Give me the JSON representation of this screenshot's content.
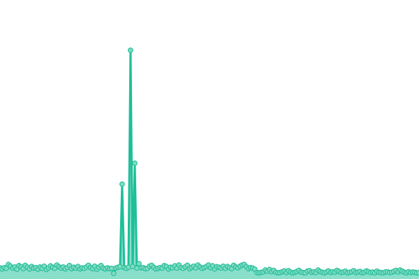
{
  "chart_data": {
    "type": "area",
    "title": "",
    "xlabel": "",
    "ylabel": "",
    "ylim": [
      0,
      100
    ],
    "grid": false,
    "legend": "none",
    "colors": {
      "line": "#1fbf98",
      "area": "#8adfcb",
      "marker_fill": "#7fdcc4",
      "marker_stroke": "#2cbf9b"
    },
    "values": [
      4.0,
      3.6,
      4.1,
      3.8,
      5.2,
      4.6,
      3.9,
      4.3,
      3.5,
      4.8,
      4.4,
      3.7,
      4.9,
      4.2,
      3.6,
      4.5,
      3.9,
      4.1,
      3.5,
      4.3,
      3.8,
      4.6,
      3.4,
      4.0,
      4.7,
      4.2,
      3.8,
      5.0,
      4.4,
      3.9,
      4.3,
      3.6,
      4.1,
      4.8,
      3.7,
      4.2,
      3.9,
      4.5,
      3.6,
      4.0,
      3.8,
      4.3,
      4.9,
      4.1,
      3.7,
      4.6,
      3.5,
      4.2,
      4.8,
      3.9,
      3.6,
      4.0,
      3.7,
      3.8,
      2.0,
      3.9,
      4.2,
      4.4,
      34.0,
      4.1,
      3.8,
      4.2,
      82.0,
      4.5,
      41.5,
      3.9,
      5.5,
      4.0,
      4.1,
      3.7,
      3.8,
      4.6,
      4.9,
      4.2,
      3.6,
      3.8,
      4.1,
      3.9,
      4.8,
      4.5,
      3.6,
      4.2,
      4.0,
      4.7,
      3.9,
      5.0,
      4.1,
      3.8,
      4.4,
      4.9,
      3.7,
      4.2,
      4.6,
      4.0,
      5.0,
      4.3,
      3.8,
      4.1,
      4.5,
      5.0,
      4.0,
      4.7,
      3.6,
      4.4,
      4.2,
      3.9,
      4.6,
      3.8,
      4.5,
      4.1,
      3.7,
      4.9,
      4.3,
      4.0,
      4.6,
      5.0,
      5.2,
      4.4,
      3.7,
      4.1,
      3.9,
      3.5,
      2.3,
      2.2,
      2.4,
      2.5,
      3.2,
      2.8,
      3.4,
      2.6,
      3.1,
      2.4,
      2.2,
      2.3,
      2.6,
      2.9,
      2.3,
      3.0,
      2.5,
      2.2,
      2.4,
      2.7,
      3.1,
      2.5,
      2.3,
      2.2,
      2.8,
      3.0,
      2.4,
      2.6,
      2.3,
      3.2,
      2.7,
      2.4,
      2.2,
      2.5,
      2.9,
      2.3,
      2.6,
      2.4,
      3.1,
      2.7,
      2.3,
      2.5,
      2.8,
      2.2,
      2.4,
      2.6,
      3.0,
      2.3,
      2.5,
      2.7,
      2.2,
      2.4,
      2.9,
      2.6,
      2.3,
      2.5,
      2.2,
      2.8,
      2.4,
      2.3,
      2.2,
      2.5,
      2.6,
      2.3,
      2.4,
      2.7,
      3.1,
      2.5,
      3.2,
      2.8,
      2.4,
      2.2,
      2.6,
      2.3,
      2.5,
      2.4,
      2.2,
      2.3
    ]
  }
}
